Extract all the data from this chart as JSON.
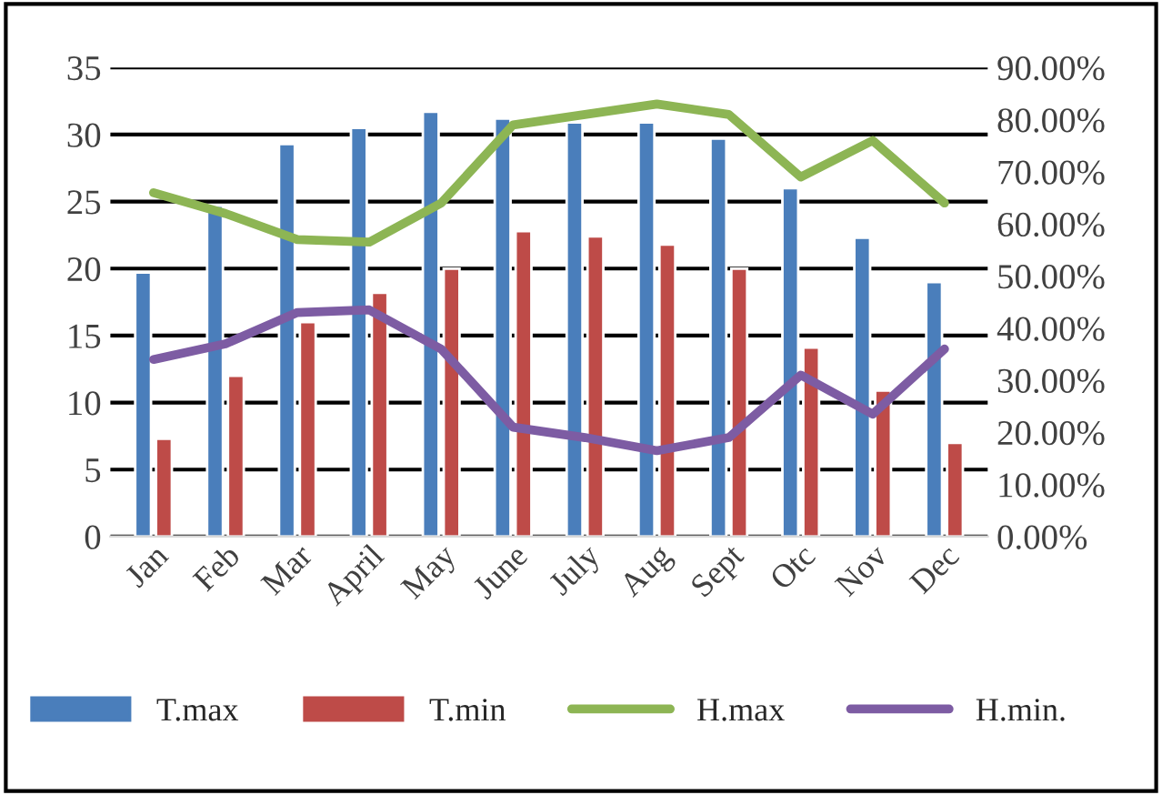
{
  "chart_data": {
    "type": "bar",
    "categories": [
      "Jan",
      "Feb",
      "Mar",
      "April",
      "May",
      "June",
      "July",
      "Aug",
      "Sept",
      "Otc",
      "Nov",
      "Dec"
    ],
    "series": [
      {
        "name": "T.max",
        "color": "#4a7ebb",
        "values": [
          19.7,
          24.7,
          29.3,
          30.5,
          31.7,
          31.2,
          30.9,
          30.9,
          29.7,
          26,
          22.3,
          19
        ]
      },
      {
        "name": "T.min",
        "color": "#be4b48",
        "values": [
          7.3,
          12,
          16,
          18.2,
          20,
          22.8,
          22.4,
          21.8,
          20,
          14.1,
          10.9,
          7
        ]
      },
      {
        "name": "H.max",
        "type": "line",
        "axis": "y2",
        "color": "#8db554",
        "values": [
          66,
          62,
          57,
          56.5,
          64,
          79,
          81,
          83,
          81,
          69,
          76,
          64
        ]
      },
      {
        "name": "H.min.",
        "type": "line",
        "axis": "y2",
        "color": "#7d5ca3",
        "values": [
          34,
          37,
          43,
          43.5,
          36,
          21,
          19,
          16.5,
          19,
          31,
          23.5,
          36
        ]
      }
    ],
    "ylim": [
      0,
      35
    ],
    "yticks": [
      0,
      5,
      10,
      15,
      20,
      25,
      30,
      35
    ],
    "y2lim": [
      0,
      90
    ],
    "y2ticks": [
      {
        "value": 0,
        "label": "0.00%"
      },
      {
        "value": 10,
        "label": "10.00%"
      },
      {
        "value": 20,
        "label": "20.00%"
      },
      {
        "value": 30,
        "label": "30.00%"
      },
      {
        "value": 40,
        "label": "40.00%"
      },
      {
        "value": 50,
        "label": "50.00%"
      },
      {
        "value": 60,
        "label": "60.00%"
      },
      {
        "value": 70,
        "label": "70.00%"
      },
      {
        "value": 80,
        "label": "80.00%"
      },
      {
        "value": 90,
        "label": "90.00%"
      }
    ],
    "grid": "y",
    "legend": "bottom",
    "marker": "none",
    "line_style": "solid"
  }
}
